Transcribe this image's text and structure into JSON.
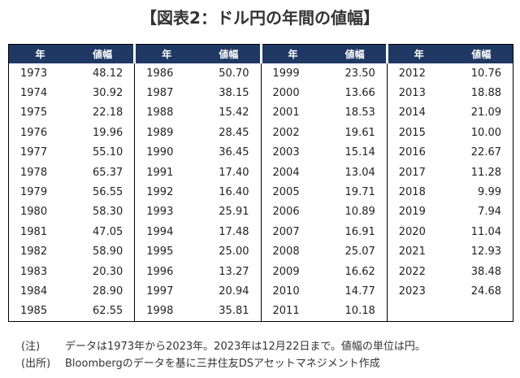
{
  "title": "【図表2：ドル円の年間の値幅】",
  "table": {
    "columns": [
      "年",
      "値幅"
    ],
    "groups": [
      {
        "rows": [
          [
            "1973",
            "48.12"
          ],
          [
            "1974",
            "30.92"
          ],
          [
            "1975",
            "22.18"
          ],
          [
            "1976",
            "19.96"
          ],
          [
            "1977",
            "55.10"
          ],
          [
            "1978",
            "65.37"
          ],
          [
            "1979",
            "56.55"
          ],
          [
            "1980",
            "58.30"
          ],
          [
            "1981",
            "47.05"
          ],
          [
            "1982",
            "58.90"
          ],
          [
            "1983",
            "20.30"
          ],
          [
            "1984",
            "28.90"
          ],
          [
            "1985",
            "62.55"
          ]
        ]
      },
      {
        "rows": [
          [
            "1986",
            "50.70"
          ],
          [
            "1987",
            "38.15"
          ],
          [
            "1988",
            "15.42"
          ],
          [
            "1989",
            "28.45"
          ],
          [
            "1990",
            "36.45"
          ],
          [
            "1991",
            "17.40"
          ],
          [
            "1992",
            "16.40"
          ],
          [
            "1993",
            "25.91"
          ],
          [
            "1994",
            "17.48"
          ],
          [
            "1995",
            "25.00"
          ],
          [
            "1996",
            "13.27"
          ],
          [
            "1997",
            "20.94"
          ],
          [
            "1998",
            "35.81"
          ]
        ]
      },
      {
        "rows": [
          [
            "1999",
            "23.50"
          ],
          [
            "2000",
            "13.66"
          ],
          [
            "2001",
            "18.53"
          ],
          [
            "2002",
            "19.61"
          ],
          [
            "2003",
            "15.14"
          ],
          [
            "2004",
            "13.04"
          ],
          [
            "2005",
            "19.71"
          ],
          [
            "2006",
            "10.89"
          ],
          [
            "2007",
            "16.91"
          ],
          [
            "2008",
            "25.07"
          ],
          [
            "2009",
            "16.62"
          ],
          [
            "2010",
            "14.77"
          ],
          [
            "2011",
            "10.18"
          ]
        ]
      },
      {
        "rows": [
          [
            "2012",
            "10.76"
          ],
          [
            "2013",
            "18.88"
          ],
          [
            "2014",
            "21.09"
          ],
          [
            "2015",
            "10.00"
          ],
          [
            "2016",
            "22.67"
          ],
          [
            "2017",
            "11.28"
          ],
          [
            "2018",
            "9.99"
          ],
          [
            "2019",
            "7.94"
          ],
          [
            "2020",
            "11.04"
          ],
          [
            "2021",
            "12.93"
          ],
          [
            "2022",
            "38.48"
          ],
          [
            "2023",
            "24.68"
          ]
        ]
      }
    ]
  },
  "notes": [
    {
      "label": "(注)",
      "text": "データは1973年から2023年。2023年は12月22日まで。値幅の単位は円。"
    },
    {
      "label": "(出所)",
      "text": "Bloombergのデータを基に三井住友DSアセットマネジメント作成"
    }
  ]
}
